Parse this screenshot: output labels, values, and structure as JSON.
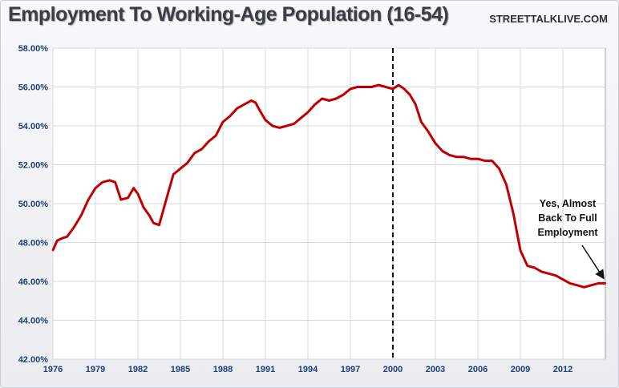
{
  "header": {
    "title": "Employment To Working-Age Population (16-54)",
    "brand": "STREETTALKLIVE.COM"
  },
  "chart_data": {
    "type": "line",
    "title": "Employment To Working-Age Population (16-54)",
    "xlabel": "",
    "ylabel": "",
    "xlim": [
      1976,
      2015
    ],
    "ylim": [
      0.42,
      0.58
    ],
    "grid": true,
    "x_ticks": [
      "1976",
      "1979",
      "1982",
      "1985",
      "1988",
      "1991",
      "1994",
      "1997",
      "2000",
      "2003",
      "2006",
      "2009",
      "2012"
    ],
    "y_ticks": [
      "42.00%",
      "44.00%",
      "46.00%",
      "48.00%",
      "50.00%",
      "52.00%",
      "54.00%",
      "56.00%",
      "58.00%"
    ],
    "vertical_marker": 2000,
    "series": [
      {
        "color": "#c00000",
        "x": [
          1976.0,
          1976.3,
          1976.6,
          1977.0,
          1977.5,
          1978.0,
          1978.5,
          1979.0,
          1979.5,
          1980.0,
          1980.4,
          1980.8,
          1981.3,
          1981.7,
          1982.0,
          1982.4,
          1982.8,
          1983.1,
          1983.5,
          1984.0,
          1984.5,
          1985.0,
          1985.5,
          1986.0,
          1986.5,
          1987.0,
          1987.5,
          1988.0,
          1988.5,
          1989.0,
          1989.5,
          1990.0,
          1990.3,
          1990.6,
          1991.0,
          1991.5,
          1992.0,
          1992.5,
          1993.0,
          1993.5,
          1994.0,
          1994.5,
          1995.0,
          1995.5,
          1996.0,
          1996.5,
          1997.0,
          1997.5,
          1998.0,
          1998.5,
          1999.0,
          1999.5,
          2000.0,
          2000.4,
          2000.8,
          2001.2,
          2001.6,
          2002.0,
          2002.5,
          2003.0,
          2003.5,
          2004.0,
          2004.5,
          2005.0,
          2005.5,
          2006.0,
          2006.5,
          2007.0,
          2007.5,
          2008.0,
          2008.5,
          2009.0,
          2009.5,
          2010.0,
          2010.5,
          2011.0,
          2011.5,
          2012.0,
          2012.5,
          2013.0,
          2013.5,
          2014.0,
          2014.5,
          2015.0
        ],
        "values": [
          0.476,
          0.481,
          0.482,
          0.483,
          0.488,
          0.494,
          0.502,
          0.508,
          0.511,
          0.512,
          0.511,
          0.502,
          0.503,
          0.508,
          0.505,
          0.498,
          0.494,
          0.49,
          0.489,
          0.502,
          0.515,
          0.518,
          0.521,
          0.526,
          0.528,
          0.532,
          0.535,
          0.542,
          0.545,
          0.549,
          0.551,
          0.553,
          0.552,
          0.548,
          0.543,
          0.54,
          0.539,
          0.54,
          0.541,
          0.544,
          0.547,
          0.551,
          0.554,
          0.553,
          0.554,
          0.556,
          0.559,
          0.56,
          0.56,
          0.56,
          0.561,
          0.56,
          0.559,
          0.561,
          0.559,
          0.556,
          0.551,
          0.542,
          0.537,
          0.531,
          0.527,
          0.525,
          0.524,
          0.524,
          0.523,
          0.523,
          0.522,
          0.522,
          0.518,
          0.51,
          0.495,
          0.476,
          0.468,
          0.467,
          0.465,
          0.464,
          0.463,
          0.461,
          0.459,
          0.458,
          0.457,
          0.458,
          0.459,
          0.459
        ]
      }
    ],
    "annotations": [
      {
        "lines": [
          "Yes, Almost",
          "Back To Full",
          "Employment"
        ],
        "x": 2015.0,
        "y": 0.459
      }
    ]
  }
}
